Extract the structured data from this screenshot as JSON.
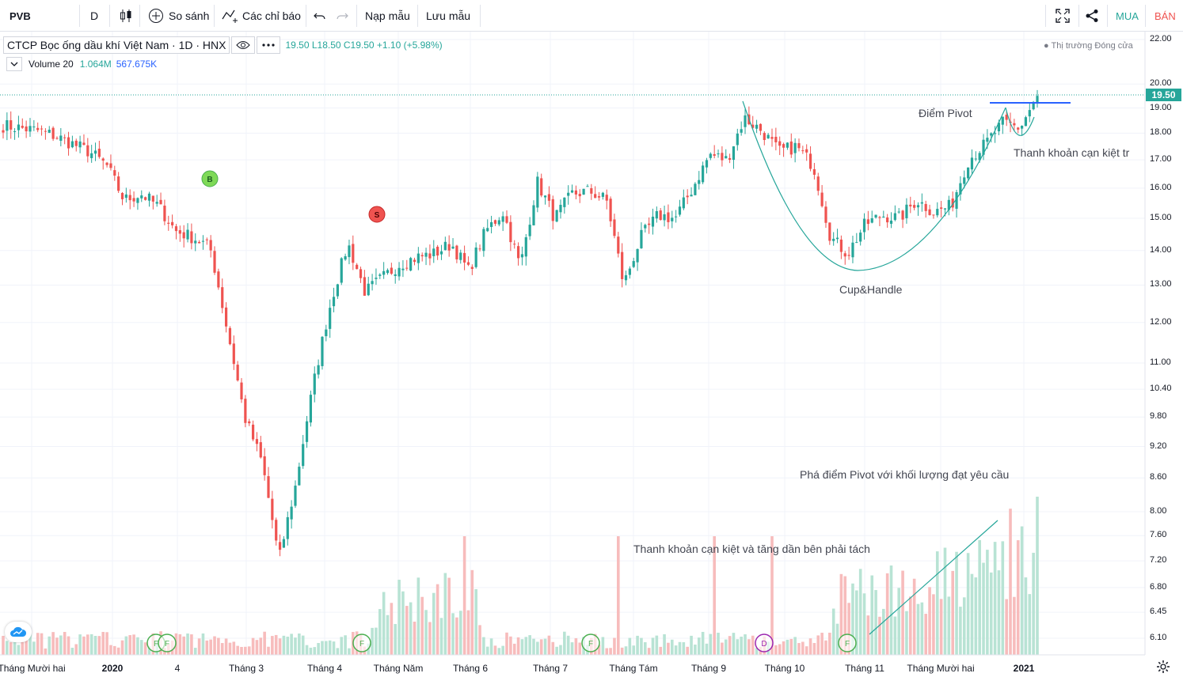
{
  "toolbar": {
    "symbol": "PVB",
    "interval": "D",
    "compare_label": "So sánh",
    "indicators_label": "Các chỉ báo",
    "load_template_label": "Nạp mẫu",
    "save_template_label": "Lưu mẫu",
    "buy_label": "MUA",
    "sell_label": "BÁN",
    "buy_color": "#26a69a",
    "sell_color": "#ef5350"
  },
  "legend": {
    "title": "CTCP Bọc ống dầu khí Việt Nam · 1D · HNX",
    "ohlc": "19.50  L18.50  C19.50  +1.10 (+5.98%)",
    "volume_name": "Volume 20",
    "volume_value": "1.064M",
    "volume_ma": "567.675K",
    "market_status": "● Thị trường Đóng cửa"
  },
  "price_axis": {
    "ticks": [
      "22.00",
      "20.00",
      "19.00",
      "18.00",
      "17.00",
      "16.00",
      "15.00",
      "14.00",
      "13.00",
      "12.00",
      "11.00",
      "10.40",
      "9.80",
      "9.20",
      "8.60",
      "8.00",
      "7.60",
      "7.20",
      "6.80",
      "6.45",
      "6.10"
    ],
    "last_price": "19.50",
    "scale": "log"
  },
  "time_axis": {
    "ticks": [
      "Tháng Mười hai",
      "2020",
      "4",
      "Tháng 3",
      "Tháng 4",
      "Tháng Năm",
      "Tháng 6",
      "Tháng 7",
      "Tháng Tám",
      "Tháng 9",
      "Tháng 10",
      "Tháng 11",
      "Tháng Mười hai",
      "2021"
    ]
  },
  "annotations": {
    "pivot": "Điểm Pivot",
    "dry_up_right": "Thanh khoản cạn kiệt tr",
    "pattern": "Cup&Handle",
    "breakout": "Phá điểm Pivot với khối lượng đạt yêu cầu",
    "volume_note": "Thanh khoản cạn kiệt và tăng dần bên phải tách"
  },
  "markers": {
    "buy": "B",
    "sell": "S",
    "events": [
      "F",
      "F",
      "F",
      "F",
      "D",
      "F"
    ]
  },
  "chart_data": {
    "type": "candlestick",
    "period_start": "Tháng Mười hai 2019",
    "period_end": "Tháng 1 2021",
    "candle_count": 270,
    "close_path": [
      18.3,
      18.2,
      18.1,
      17.9,
      17.6,
      17.3,
      16.8,
      15.6,
      15.8,
      15.4,
      14.6,
      14.4,
      14.1,
      11.8,
      9.8,
      8.9,
      7.2,
      8.5,
      10.5,
      12.5,
      14.2,
      12.8,
      13.2,
      13.6,
      13.8,
      13.9,
      14.2,
      13.4,
      14.6,
      15.2,
      13.5,
      16.2,
      15.0,
      15.8,
      15.9,
      15.6,
      13.0,
      14.4,
      15.1,
      15.0,
      16.0,
      17.2,
      17.0,
      18.6,
      18.1,
      17.3,
      17.5,
      16.8,
      14.4,
      13.9,
      14.8,
      15.1,
      15.0,
      15.6,
      15.2,
      15.4,
      17.0,
      17.6,
      18.4,
      18.2,
      19.5
    ],
    "volume_relative": "low at left, spike in Tháng 4, rising into Tháng 1 2021",
    "colors": {
      "up": "#26a69a",
      "down": "#ef5350",
      "volume_up": "#b8e3d4",
      "volume_down": "#f7bcbc"
    }
  }
}
